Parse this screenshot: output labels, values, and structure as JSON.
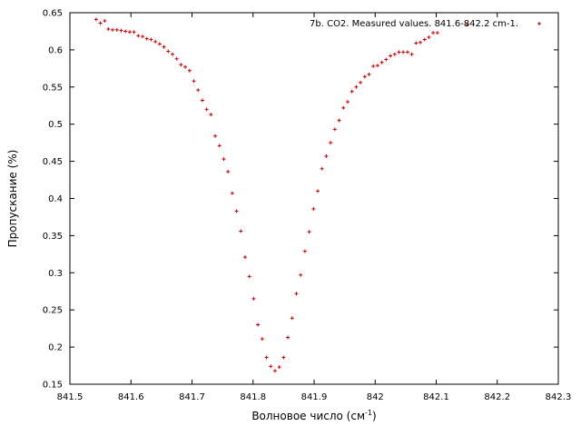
{
  "chart_data": {
    "type": "scatter",
    "title": "",
    "xlabel": "Волновое число (см",
    "xlabel_superscript": "-1",
    "xlabel_suffix": ")",
    "ylabel": "Пропускание (%)",
    "xlim": [
      841.5,
      842.3
    ],
    "ylim": [
      0.15,
      0.65
    ],
    "grid": false,
    "legend_position": "top-right",
    "x_ticks": [
      "841.5",
      "841.6",
      "841.7",
      "841.8",
      "841.9",
      "842",
      "842.1",
      "842.2",
      "842.3"
    ],
    "y_ticks": [
      "0.15",
      "0.2",
      "0.25",
      "0.3",
      "0.35",
      "0.4",
      "0.45",
      "0.5",
      "0.55",
      "0.6",
      "0.65"
    ],
    "series": [
      {
        "name": "7b. CO2. Measured values. 841.6-842.2 cm-1.",
        "color": "#cc0000",
        "marker": "plus",
        "points": [
          [
            841.543,
            0.641
          ],
          [
            841.55,
            0.636
          ],
          [
            841.557,
            0.639
          ],
          [
            841.563,
            0.628
          ],
          [
            841.57,
            0.627
          ],
          [
            841.577,
            0.627
          ],
          [
            841.584,
            0.626
          ],
          [
            841.591,
            0.625
          ],
          [
            841.598,
            0.624
          ],
          [
            841.605,
            0.624
          ],
          [
            841.612,
            0.619
          ],
          [
            841.619,
            0.618
          ],
          [
            841.626,
            0.615
          ],
          [
            841.633,
            0.614
          ],
          [
            841.64,
            0.611
          ],
          [
            841.647,
            0.608
          ],
          [
            841.654,
            0.604
          ],
          [
            841.661,
            0.598
          ],
          [
            841.668,
            0.594
          ],
          [
            841.675,
            0.588
          ],
          [
            841.682,
            0.58
          ],
          [
            841.689,
            0.577
          ],
          [
            841.696,
            0.572
          ],
          [
            841.703,
            0.558
          ],
          [
            841.71,
            0.546
          ],
          [
            841.717,
            0.532
          ],
          [
            841.724,
            0.52
          ],
          [
            841.731,
            0.513
          ],
          [
            841.738,
            0.484
          ],
          [
            841.745,
            0.471
          ],
          [
            841.752,
            0.453
          ],
          [
            841.759,
            0.436
          ],
          [
            841.766,
            0.407
          ],
          [
            841.773,
            0.383
          ],
          [
            841.78,
            0.356
          ],
          [
            841.787,
            0.321
          ],
          [
            841.794,
            0.295
          ],
          [
            841.801,
            0.265
          ],
          [
            841.808,
            0.23
          ],
          [
            841.815,
            0.211
          ],
          [
            841.822,
            0.186
          ],
          [
            841.829,
            0.174
          ],
          [
            841.836,
            0.168
          ],
          [
            841.843,
            0.173
          ],
          [
            841.85,
            0.186
          ],
          [
            841.857,
            0.213
          ],
          [
            841.864,
            0.239
          ],
          [
            841.871,
            0.272
          ],
          [
            841.878,
            0.297
          ],
          [
            841.885,
            0.329
          ],
          [
            841.892,
            0.355
          ],
          [
            841.899,
            0.386
          ],
          [
            841.906,
            0.41
          ],
          [
            841.913,
            0.44
          ],
          [
            841.92,
            0.457
          ],
          [
            841.927,
            0.475
          ],
          [
            841.934,
            0.493
          ],
          [
            841.941,
            0.505
          ],
          [
            841.948,
            0.522
          ],
          [
            841.955,
            0.53
          ],
          [
            841.962,
            0.544
          ],
          [
            841.969,
            0.55
          ],
          [
            841.976,
            0.556
          ],
          [
            841.983,
            0.564
          ],
          [
            841.99,
            0.567
          ],
          [
            841.997,
            0.578
          ],
          [
            842.004,
            0.579
          ],
          [
            842.011,
            0.583
          ],
          [
            842.018,
            0.587
          ],
          [
            842.025,
            0.592
          ],
          [
            842.032,
            0.594
          ],
          [
            842.039,
            0.597
          ],
          [
            842.046,
            0.597
          ],
          [
            842.053,
            0.597
          ],
          [
            842.06,
            0.594
          ],
          [
            842.067,
            0.609
          ],
          [
            842.074,
            0.61
          ],
          [
            842.081,
            0.614
          ],
          [
            842.088,
            0.617
          ],
          [
            842.095,
            0.623
          ],
          [
            842.102,
            0.623
          ],
          [
            842.151,
            0.634
          ]
        ]
      }
    ]
  }
}
